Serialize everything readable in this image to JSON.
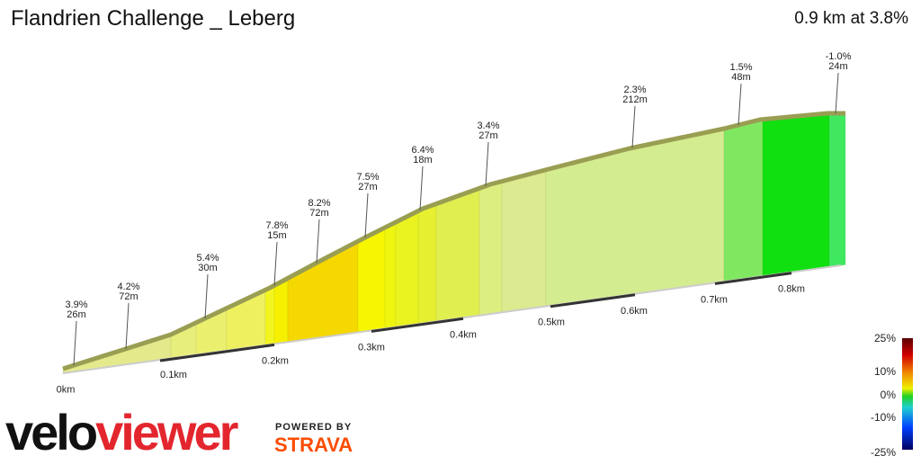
{
  "header": {
    "title": "Flandrien Challenge _ Leberg",
    "summary": "0.9 km at 3.8%"
  },
  "segments": [
    {
      "grade": "3.9%",
      "length": "26m"
    },
    {
      "grade": "4.2%",
      "length": "72m"
    },
    {
      "grade": "5.4%",
      "length": "30m"
    },
    {
      "grade": "7.8%",
      "length": "15m"
    },
    {
      "grade": "8.2%",
      "length": "72m"
    },
    {
      "grade": "7.5%",
      "length": "27m"
    },
    {
      "grade": "6.4%",
      "length": "18m"
    },
    {
      "grade": "3.4%",
      "length": "27m"
    },
    {
      "grade": "2.3%",
      "length": "212m"
    },
    {
      "grade": "1.5%",
      "length": "48m"
    },
    {
      "grade": "-1.0%",
      "length": "24m"
    }
  ],
  "distance_ticks": [
    "0km",
    "0.1km",
    "0.2km",
    "0.3km",
    "0.4km",
    "0.5km",
    "0.6km",
    "0.7km",
    "0.8km"
  ],
  "legend_ticks": [
    "25%",
    "10%",
    "0%",
    "-10%",
    "-25%"
  ],
  "brand": {
    "logo_dark": "velo",
    "logo_red": "viewer",
    "powered_by": "POWERED BY",
    "strava": "STRAVA"
  }
}
